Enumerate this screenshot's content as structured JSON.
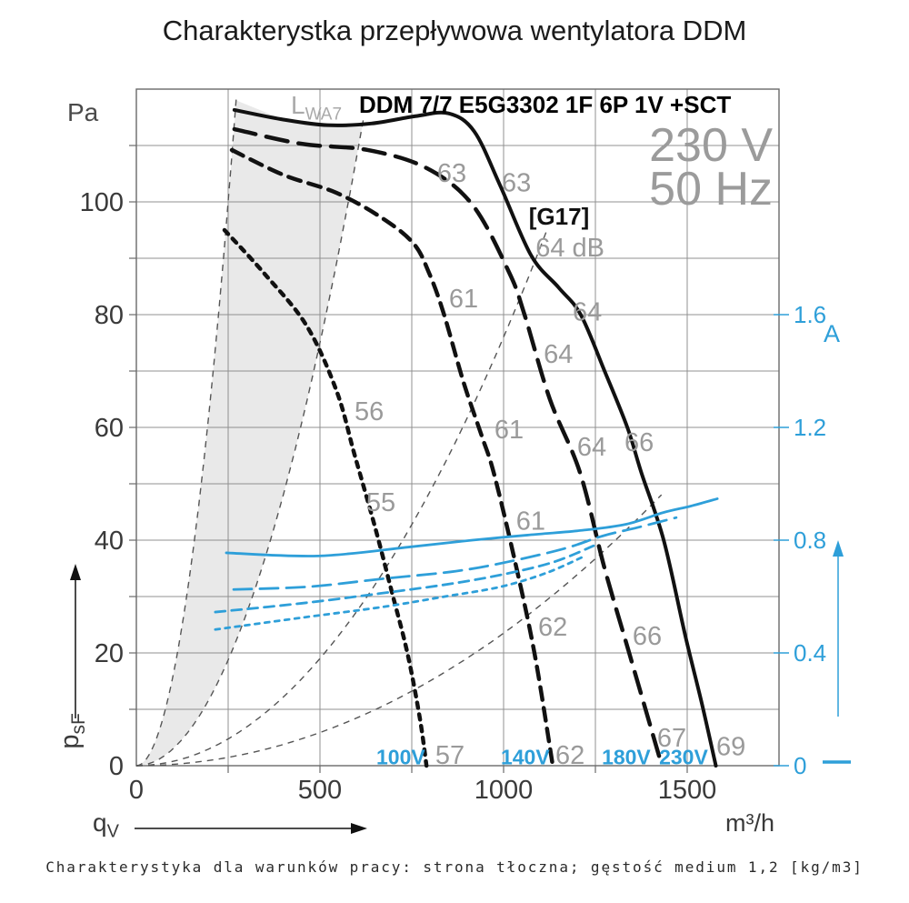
{
  "page": {
    "title": "Charakterystka przepływowa wentylatora DDM",
    "caption": "Charakterystyka dla warunków pracy: strona tłoczna; gęstość medium 1,2 [kg/m3]"
  },
  "header": {
    "model": "DDM 7/7 E5G3302 1F 6P 1V +SCT",
    "voltage": "230 V",
    "frequency": "50 Hz",
    "sound_symbol": {
      "main": "L",
      "sub": "WA7"
    }
  },
  "axes": {
    "left": {
      "unit": "Pa",
      "symbol": {
        "main": "p",
        "sub": "sF"
      },
      "ticks": [
        {
          "label": "0",
          "p": 0
        },
        {
          "label": "20",
          "p": 20
        },
        {
          "label": "40",
          "p": 40
        },
        {
          "label": "60",
          "p": 60
        },
        {
          "label": "80",
          "p": 80
        },
        {
          "label": "100",
          "p": 100
        }
      ]
    },
    "right": {
      "unit": "A",
      "ticks": [
        {
          "label": "0",
          "a": 0
        },
        {
          "label": "0.4",
          "a": 0.4
        },
        {
          "label": "0.8",
          "a": 0.8
        },
        {
          "label": "1.2",
          "a": 1.2
        },
        {
          "label": "1.6",
          "a": 1.6
        }
      ]
    },
    "bottom": {
      "unit": "m³/h",
      "symbol": {
        "main": "q",
        "sub": "V"
      },
      "ticks": [
        {
          "label": "0",
          "q": 0
        },
        {
          "label": "500",
          "q": 500
        },
        {
          "label": "1000",
          "q": 1000
        },
        {
          "label": "1500",
          "q": 1500
        }
      ]
    }
  },
  "colors": {
    "accent_blue": "#2e9fd9",
    "label_gray": "#9a9a9a",
    "curve_black": "#111111",
    "grid": "#909090",
    "border": "#6a6a6a",
    "system_dash": "#555555",
    "shade": "#e9e9e9"
  },
  "chart_data": {
    "type": "line",
    "xlabel": "qV [m³/h]",
    "ylabel_left": "psF [Pa]",
    "ylabel_right": "I [A]",
    "x_range": [
      0,
      1750
    ],
    "y_left_range_pa": [
      0,
      120
    ],
    "amps_per_pa": 0.02,
    "grid": {
      "x_step": 250,
      "y_step": 10
    },
    "pressure_curves": [
      {
        "name": "230V",
        "style": "solid",
        "points": [
          [
            267,
            116.3
          ],
          [
            400,
            114.6
          ],
          [
            520,
            113.6
          ],
          [
            640,
            113.9
          ],
          [
            760,
            115.2
          ],
          [
            850,
            115.7
          ],
          [
            920,
            112.5
          ],
          [
            990,
            103
          ],
          [
            1075,
            90.5
          ],
          [
            1150,
            84.8
          ],
          [
            1210,
            80
          ],
          [
            1275,
            70
          ],
          [
            1337,
            60
          ],
          [
            1375,
            52
          ],
          [
            1436,
            40
          ],
          [
            1495,
            23
          ],
          [
            1540,
            11
          ],
          [
            1578,
            0
          ]
        ]
      },
      {
        "name": "180V",
        "style": "longdash",
        "points": [
          [
            267,
            112.9
          ],
          [
            450,
            110.3
          ],
          [
            630,
            109.2
          ],
          [
            790,
            106
          ],
          [
            915,
            99.5
          ],
          [
            1015,
            87.5
          ],
          [
            1057,
            80
          ],
          [
            1126,
            65
          ],
          [
            1208,
            52
          ],
          [
            1275,
            35
          ],
          [
            1342,
            20
          ],
          [
            1431,
            0
          ]
        ]
      },
      {
        "name": "140V",
        "style": "meddash",
        "points": [
          [
            260,
            109.2
          ],
          [
            400,
            104.8
          ],
          [
            545,
            101.6
          ],
          [
            670,
            97.1
          ],
          [
            755,
            92.6
          ],
          [
            797,
            87.4
          ],
          [
            837,
            80.2
          ],
          [
            891,
            68
          ],
          [
            941,
            58.4
          ],
          [
            973,
            52
          ],
          [
            1027,
            37.4
          ],
          [
            1084,
            20
          ],
          [
            1134,
            0
          ]
        ]
      },
      {
        "name": "100V",
        "style": "shortdash",
        "points": [
          [
            240,
            95
          ],
          [
            347,
            87.4
          ],
          [
            463,
            78.1
          ],
          [
            545,
            66.5
          ],
          [
            594,
            55.2
          ],
          [
            650,
            42.3
          ],
          [
            695,
            31
          ],
          [
            738,
            20
          ],
          [
            772,
            8.4
          ],
          [
            790,
            0
          ]
        ]
      }
    ],
    "current_curves": [
      {
        "name": "230V",
        "style": "solid",
        "points": [
          [
            245,
            0.755
          ],
          [
            495,
            0.744
          ],
          [
            745,
            0.776
          ],
          [
            915,
            0.8
          ],
          [
            1065,
            0.818
          ],
          [
            1215,
            0.835
          ],
          [
            1335,
            0.857
          ],
          [
            1435,
            0.898
          ],
          [
            1510,
            0.921
          ],
          [
            1582,
            0.947
          ]
        ]
      },
      {
        "name": "180V",
        "style": "longdash",
        "points": [
          [
            265,
            0.625
          ],
          [
            470,
            0.635
          ],
          [
            670,
            0.663
          ],
          [
            870,
            0.69
          ],
          [
            1015,
            0.724
          ],
          [
            1165,
            0.77
          ],
          [
            1270,
            0.815
          ],
          [
            1365,
            0.845
          ],
          [
            1470,
            0.88
          ]
        ]
      },
      {
        "name": "140V",
        "style": "meddash",
        "points": [
          [
            215,
            0.545
          ],
          [
            450,
            0.576
          ],
          [
            670,
            0.612
          ],
          [
            865,
            0.647
          ],
          [
            1015,
            0.683
          ],
          [
            1140,
            0.724
          ],
          [
            1245,
            0.78
          ]
        ]
      },
      {
        "name": "100V",
        "style": "shortdash",
        "points": [
          [
            215,
            0.483
          ],
          [
            450,
            0.525
          ],
          [
            670,
            0.563
          ],
          [
            840,
            0.6
          ],
          [
            990,
            0.634
          ],
          [
            1115,
            0.683
          ],
          [
            1215,
            0.74
          ]
        ]
      }
    ],
    "system_curves": [
      {
        "k": 0.0016,
        "q_max": 272
      },
      {
        "k": 0.0003,
        "q_max": 618
      },
      {
        "k": 7.6e-05,
        "q_max": 1120
      },
      {
        "k": 2.35e-05,
        "q_max": 1430
      }
    ],
    "operating_range_shade": {
      "left_k": 0.0016,
      "q_left": 272,
      "right_k": 0.0003,
      "q_right": 618
    },
    "noise_annotations": [
      {
        "text": "63",
        "q": 859,
        "p": 105.2,
        "kind": "noise"
      },
      {
        "text": "63",
        "q": 1035,
        "p": 103.5,
        "kind": "noise"
      },
      {
        "text": "[G17]",
        "q": 1151,
        "p": 97.6,
        "kind": "code"
      },
      {
        "text": "64 dB",
        "q": 1181,
        "p": 91.9,
        "kind": "noise"
      },
      {
        "text": "61",
        "q": 891,
        "p": 82.9,
        "kind": "noise"
      },
      {
        "text": "64",
        "q": 1228,
        "p": 80.6,
        "kind": "noise"
      },
      {
        "text": "64",
        "q": 1149,
        "p": 73.1,
        "kind": "noise"
      },
      {
        "text": "56",
        "q": 634,
        "p": 62.9,
        "kind": "noise"
      },
      {
        "text": "61",
        "q": 1015,
        "p": 59.7,
        "kind": "noise"
      },
      {
        "text": "64",
        "q": 1240,
        "p": 56.6,
        "kind": "noise"
      },
      {
        "text": "66",
        "q": 1369,
        "p": 57.4,
        "kind": "noise"
      },
      {
        "text": "55",
        "q": 666,
        "p": 46.8,
        "kind": "noise"
      },
      {
        "text": "61",
        "q": 1074,
        "p": 43.5,
        "kind": "noise"
      },
      {
        "text": "62",
        "q": 1134,
        "p": 24.7,
        "kind": "noise"
      },
      {
        "text": "66",
        "q": 1391,
        "p": 23.1,
        "kind": "noise"
      },
      {
        "text": "67",
        "q": 1458,
        "p": 5.0,
        "kind": "noise"
      },
      {
        "text": "69",
        "q": 1619,
        "p": 3.5,
        "kind": "noise"
      },
      {
        "text": "57",
        "q": 854,
        "p": 1.9,
        "kind": "noise"
      },
      {
        "text": "62",
        "q": 1181,
        "p": 1.9,
        "kind": "noise"
      }
    ],
    "voltage_labels": [
      {
        "text": "100V",
        "q": 720,
        "p": 1.7
      },
      {
        "text": "140V",
        "q": 1059,
        "p": 1.7
      },
      {
        "text": "180V",
        "q": 1334,
        "p": 1.7
      },
      {
        "text": "230V",
        "q": 1490,
        "p": 1.7
      }
    ]
  }
}
